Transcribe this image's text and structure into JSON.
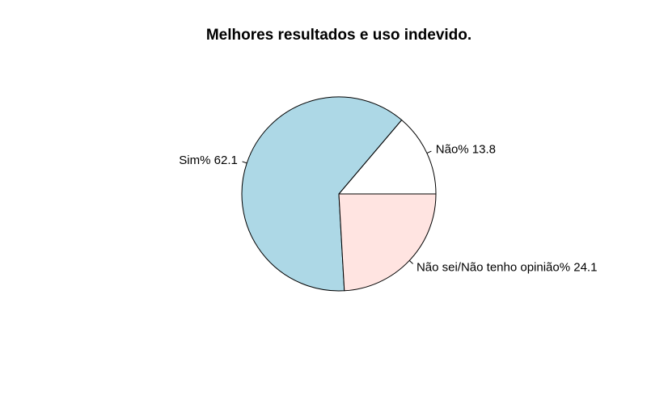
{
  "chart_data": {
    "type": "pie",
    "title": "Melhores resultados e uso indevido.",
    "slices": [
      {
        "label": "Não% 13.8",
        "value": 13.8,
        "color": "#ffffff"
      },
      {
        "label": "Sim% 62.1",
        "value": 62.1,
        "color": "#add8e6"
      },
      {
        "label": "Não sei/Não tenho opinião% 24.1",
        "value": 24.1,
        "color": "#ffe4e1"
      }
    ],
    "start_angle_deg": 0,
    "direction": "counterclockwise",
    "legend": "none"
  }
}
